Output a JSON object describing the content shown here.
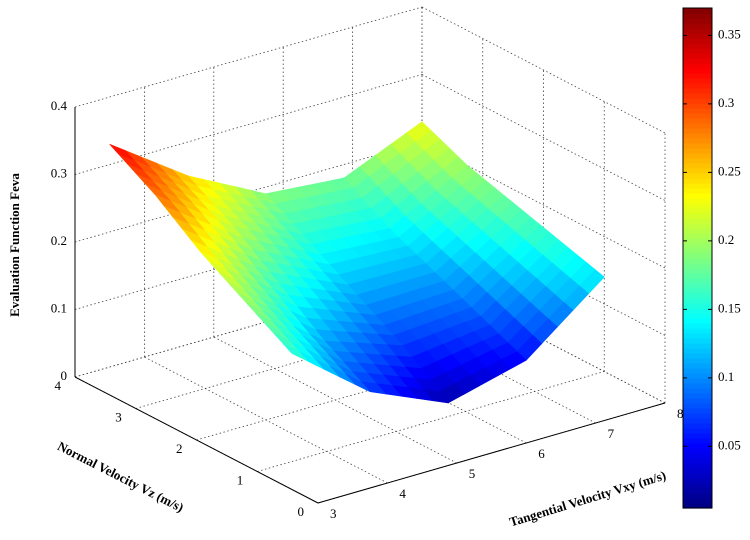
{
  "chart_data": {
    "type": "surface",
    "x_label": "Tangential Velocity Vxy (m/s)",
    "y_label": "Normal Velocity Vz (m/s)",
    "z_label": "Evaluation Function Feva",
    "x": [
      3.5,
      4.625,
      5.75,
      6.875,
      8
    ],
    "y": [
      1,
      1.75,
      2.5,
      3.25,
      4
    ],
    "z": [
      [
        0.16,
        0.07,
        0.02,
        0.05,
        0.14
      ],
      [
        0.2,
        0.11,
        0.07,
        0.08,
        0.16
      ],
      [
        0.24,
        0.16,
        0.11,
        0.11,
        0.18
      ],
      [
        0.29,
        0.21,
        0.15,
        0.14,
        0.2
      ],
      [
        0.33,
        0.25,
        0.19,
        0.18,
        0.23
      ]
    ],
    "xlim": [
      3,
      8
    ],
    "xticks": [
      3,
      4,
      5,
      6,
      7,
      8
    ],
    "ylim": [
      0,
      4
    ],
    "yticks": [
      0,
      1,
      2,
      3,
      4
    ],
    "zlim": [
      0,
      0.4
    ],
    "zticks": [
      0,
      0.1,
      0.2,
      0.3,
      0.4
    ],
    "colormap": "jet",
    "clim": [
      0.005,
      0.37
    ],
    "cticks": [
      0.05,
      0.1,
      0.15,
      0.2,
      0.25,
      0.3,
      0.35
    ],
    "grid": true
  }
}
